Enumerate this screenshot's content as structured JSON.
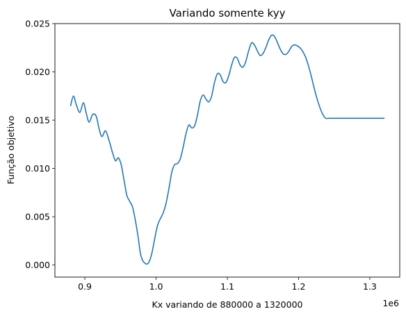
{
  "chart_data": {
    "type": "line",
    "title": "Variando somente kyy",
    "xlabel": "Kx variando de 880000 a 1320000",
    "ylabel": "Função objetivo",
    "x_offset_label": "1e6",
    "xlim": [
      0.858,
      1.342
    ],
    "ylim": [
      -0.00125,
      0.025
    ],
    "x_ticks": [
      0.9,
      1.0,
      1.1,
      1.2,
      1.3
    ],
    "x_tick_labels": [
      "0.9",
      "1.0",
      "1.1",
      "1.2",
      "1.3"
    ],
    "y_ticks": [
      0.0,
      0.005,
      0.01,
      0.015,
      0.02,
      0.025
    ],
    "y_tick_labels": [
      "0.000",
      "0.005",
      "0.010",
      "0.015",
      "0.020",
      "0.025"
    ],
    "grid": false,
    "line_color": "#1f77b4",
    "series": [
      {
        "x": [
          0.88,
          0.884,
          0.888,
          0.893,
          0.898,
          0.902,
          0.906,
          0.911,
          0.916,
          0.92,
          0.924,
          0.929,
          0.934,
          0.939,
          0.943,
          0.947,
          0.951,
          0.955,
          0.959,
          0.963,
          0.967,
          0.971,
          0.975,
          0.978,
          0.981,
          0.984,
          0.987,
          0.99,
          0.994,
          0.998,
          1.002,
          1.006,
          1.01,
          1.014,
          1.018,
          1.022,
          1.026,
          1.03,
          1.034,
          1.038,
          1.042,
          1.046,
          1.05,
          1.054,
          1.058,
          1.062,
          1.066,
          1.07,
          1.074,
          1.078,
          1.082,
          1.086,
          1.09,
          1.094,
          1.098,
          1.102,
          1.106,
          1.11,
          1.114,
          1.118,
          1.122,
          1.126,
          1.13,
          1.134,
          1.138,
          1.142,
          1.146,
          1.15,
          1.154,
          1.158,
          1.162,
          1.166,
          1.17,
          1.174,
          1.178,
          1.182,
          1.186,
          1.19,
          1.194,
          1.198,
          1.202,
          1.206,
          1.21,
          1.214,
          1.218,
          1.222,
          1.226,
          1.23,
          1.234,
          1.238,
          1.242,
          1.246,
          1.25,
          1.254,
          1.258,
          1.262,
          1.266,
          1.27,
          1.274,
          1.278,
          1.282,
          1.286,
          1.29,
          1.294,
          1.298,
          1.302,
          1.306,
          1.31,
          1.314,
          1.318,
          1.32
        ],
        "y": [
          0.0165,
          0.0175,
          0.0166,
          0.0158,
          0.0168,
          0.0157,
          0.0148,
          0.0156,
          0.0154,
          0.0141,
          0.0133,
          0.0139,
          0.0129,
          0.0116,
          0.0108,
          0.0111,
          0.0104,
          0.0088,
          0.0072,
          0.0066,
          0.006,
          0.0046,
          0.0028,
          0.0012,
          0.0005,
          0.0002,
          0.0001,
          0.0003,
          0.0012,
          0.0027,
          0.0041,
          0.0048,
          0.0054,
          0.0064,
          0.0079,
          0.0096,
          0.0104,
          0.0105,
          0.011,
          0.0122,
          0.0136,
          0.0145,
          0.0142,
          0.0144,
          0.0155,
          0.017,
          0.0176,
          0.0172,
          0.0169,
          0.0175,
          0.0189,
          0.0198,
          0.0197,
          0.019,
          0.0189,
          0.0196,
          0.0207,
          0.0215,
          0.0214,
          0.0207,
          0.0205,
          0.0211,
          0.0222,
          0.023,
          0.0228,
          0.0222,
          0.0217,
          0.0219,
          0.0225,
          0.0233,
          0.0238,
          0.0237,
          0.0231,
          0.0224,
          0.0219,
          0.0218,
          0.0221,
          0.0226,
          0.0228,
          0.0227,
          0.0225,
          0.0221,
          0.0215,
          0.0206,
          0.0195,
          0.0183,
          0.0172,
          0.0163,
          0.0156,
          0.0152,
          0.0152,
          0.0152,
          0.0152,
          0.0152,
          0.0152,
          0.0152,
          0.0152,
          0.0152,
          0.0152,
          0.0152,
          0.0152,
          0.0152,
          0.0152,
          0.0152,
          0.0152,
          0.0152,
          0.0152,
          0.0152,
          0.0152,
          0.0152,
          0.0152
        ]
      }
    ]
  }
}
